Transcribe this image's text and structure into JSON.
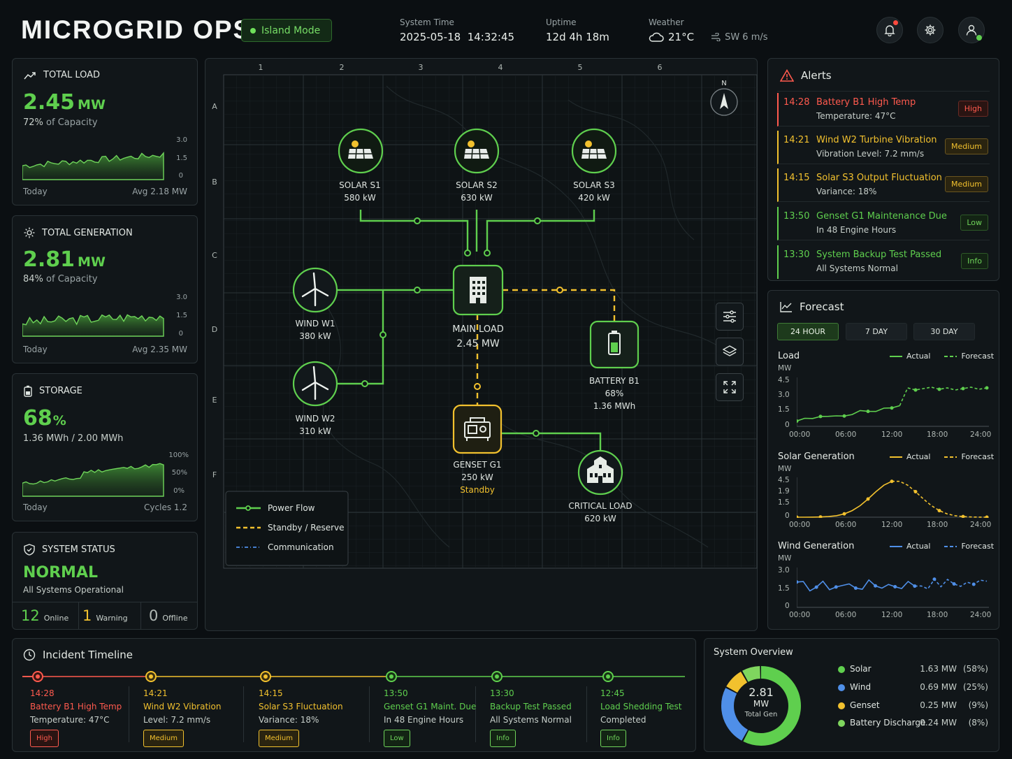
{
  "header": {
    "brand": "MICROGRID OPS",
    "mode": "Island Mode",
    "system_time_label": "System Time",
    "system_time": "2025-05-18  14:32:45",
    "uptime_label": "Uptime",
    "uptime": "12d 4h 18m",
    "weather_label": "Weather",
    "temperature": "21°C",
    "wind": "SW 6 m/s"
  },
  "kpis": {
    "load": {
      "title": "TOTAL LOAD",
      "value": "2.45",
      "unit": "MW",
      "pct": "72%",
      "cap": "of Capacity",
      "left": "Today",
      "right": "Avg 2.18 MW",
      "ticks": [
        "3.0",
        "1.5",
        "0"
      ]
    },
    "gen": {
      "title": "TOTAL GENERATION",
      "value": "2.81",
      "unit": "MW",
      "pct": "84%",
      "cap": "of Capacity",
      "left": "Today",
      "right": "Avg 2.35 MW",
      "ticks": [
        "3.0",
        "1.5",
        "0"
      ]
    },
    "storage": {
      "title": "STORAGE",
      "value": "68",
      "unit": "%",
      "sub": "1.36 MWh / 2.00 MWh",
      "left": "Today",
      "right": "Cycles 1.2",
      "ticks": [
        "100%",
        "50%",
        "0%"
      ]
    },
    "status": {
      "title": "SYSTEM STATUS",
      "value": "NORMAL",
      "sub": "All Systems Operational",
      "online_n": "12",
      "online": "Online",
      "warn_n": "1",
      "warn": "Warning",
      "off_n": "0",
      "off": "Offline"
    }
  },
  "map": {
    "cols": [
      "1",
      "2",
      "3",
      "4",
      "5",
      "6"
    ],
    "rows": [
      "A",
      "B",
      "C",
      "D",
      "E",
      "F"
    ],
    "north": "N",
    "nodes": {
      "s1": {
        "name": "SOLAR S1",
        "val": "580 kW"
      },
      "s2": {
        "name": "SOLAR S2",
        "val": "630 kW"
      },
      "s3": {
        "name": "SOLAR S3",
        "val": "420 kW"
      },
      "w1": {
        "name": "WIND W1",
        "val": "380 kW"
      },
      "w2": {
        "name": "WIND W2",
        "val": "310 kW"
      },
      "main": {
        "name": "MAIN LOAD",
        "val": "2.45 MW"
      },
      "bat": {
        "name": "BATTERY B1",
        "val": "68%",
        "val2": "1.36 MWh"
      },
      "gen": {
        "name": "GENSET G1",
        "val": "250 kW",
        "state": "Standby"
      },
      "crit": {
        "name": "CRITICAL LOAD",
        "val": "620 kW"
      }
    },
    "legend": [
      "Power Flow",
      "Standby / Reserve",
      "Communication"
    ]
  },
  "alerts": {
    "title": "Alerts",
    "items": [
      {
        "time": "14:28",
        "title": "Battery B1 High Temp",
        "sub": "Temperature: 47°C",
        "badge": "High"
      },
      {
        "time": "14:21",
        "title": "Wind W2 Turbine Vibration",
        "sub": "Vibration Level: 7.2 mm/s",
        "badge": "Medium"
      },
      {
        "time": "14:15",
        "title": "Solar S3 Output Fluctuation",
        "sub": "Variance: 18%",
        "badge": "Medium"
      },
      {
        "time": "13:50",
        "title": "Genset G1 Maintenance Due",
        "sub": "In 48 Engine Hours",
        "badge": "Low"
      },
      {
        "time": "13:30",
        "title": "System Backup Test Passed",
        "sub": "All Systems Normal",
        "badge": "Info"
      }
    ]
  },
  "forecast": {
    "title": "Forecast",
    "tabs": [
      "24 HOUR",
      "7 DAY",
      "30 DAY"
    ],
    "actual": "Actual",
    "forecast": "Forecast",
    "xticks": [
      "00:00",
      "06:00",
      "12:00",
      "18:00",
      "24:00"
    ],
    "load": {
      "title": "Load",
      "unit": "MW",
      "yticks": [
        "4.5",
        "3.0",
        "1.5",
        "0"
      ]
    },
    "solar": {
      "title": "Solar Generation",
      "unit": "MW",
      "yticks": [
        "4.5",
        "1.9",
        "1.5",
        "0"
      ]
    },
    "wind": {
      "title": "Wind Generation",
      "unit": "MW",
      "yticks": [
        "3.0",
        "1.5",
        "0"
      ]
    }
  },
  "timeline": {
    "title": "Incident Timeline",
    "items": [
      {
        "time": "14:28",
        "title": "Battery B1 High Temp",
        "sub": "Temperature: 47°C",
        "badge": "High"
      },
      {
        "time": "14:21",
        "title": "Wind W2 Vibration",
        "sub": "Level: 7.2 mm/s",
        "badge": "Medium"
      },
      {
        "time": "14:15",
        "title": "Solar S3 Fluctuation",
        "sub": "Variance: 18%",
        "badge": "Medium"
      },
      {
        "time": "13:50",
        "title": "Genset G1 Maint. Due",
        "sub": "In 48 Engine Hours",
        "badge": "Low"
      },
      {
        "time": "13:30",
        "title": "Backup Test Passed",
        "sub": "All Systems Normal",
        "badge": "Info"
      },
      {
        "time": "12:45",
        "title": "Load Shedding Test",
        "sub": "Completed",
        "badge": "Info"
      }
    ]
  },
  "overview": {
    "title": "System Overview",
    "center_value": "2.81",
    "center_unit": "MW",
    "center_label": "Total Gen",
    "rows": [
      {
        "name": "Solar",
        "value": "1.63 MW",
        "pct": "(58%)",
        "share": 58,
        "color": "#5fcf4e"
      },
      {
        "name": "Wind",
        "value": "0.69 MW",
        "pct": "(25%)",
        "share": 25,
        "color": "#4f8fe8"
      },
      {
        "name": "Genset",
        "value": "0.25 MW",
        "pct": "(9%)",
        "share": 9,
        "color": "#f2c12e"
      },
      {
        "name": "Battery Discharge",
        "value": "0.24 MW",
        "pct": "(8%)",
        "share": 8,
        "color": "#7fd65e"
      }
    ]
  },
  "colors": {
    "accent": "#5fcf4e",
    "warn": "#f2c12e",
    "alert": "#ff5a4e",
    "comm": "#4f8fe8"
  }
}
